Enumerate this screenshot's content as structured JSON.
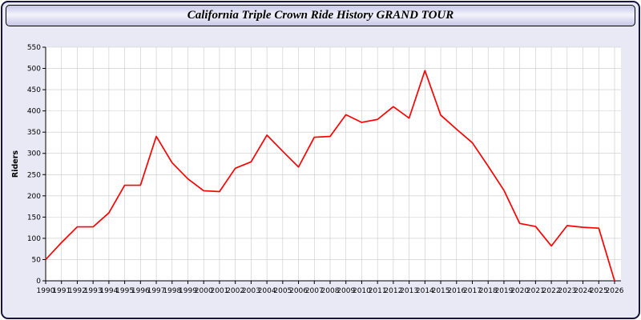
{
  "window": {
    "title": "California Triple Crown Ride History GRAND TOUR"
  },
  "chart_data": {
    "type": "line",
    "title": "California Triple Crown Ride History GRAND TOUR",
    "xlabel": "",
    "ylabel": "Riders",
    "ylim": [
      0,
      550
    ],
    "ytick_step": 50,
    "grid": true,
    "legend_position": "none",
    "line_color": "#ff0000",
    "grid_color": "#c9c9c9",
    "plot_bg": "#ffffff",
    "page_bg": "#e9e9f6",
    "x": [
      1990,
      1991,
      1992,
      1993,
      1994,
      1995,
      1996,
      1997,
      1998,
      1999,
      2000,
      2001,
      2002,
      2003,
      2004,
      2005,
      2006,
      2007,
      2008,
      2009,
      2010,
      2011,
      2012,
      2013,
      2014,
      2015,
      2016,
      2017,
      2018,
      2019,
      2020,
      2021,
      2022,
      2023,
      2024,
      2025,
      2026
    ],
    "series": [
      {
        "name": "Riders",
        "values": [
          50,
          90,
          127,
          127,
          160,
          225,
          225,
          340,
          278,
          240,
          212,
          210,
          265,
          280,
          343,
          305,
          268,
          338,
          340,
          391,
          373,
          380,
          410,
          383,
          495,
          390,
          357,
          325,
          270,
          213,
          135,
          128,
          82,
          130,
          126,
          124,
          0
        ]
      }
    ]
  }
}
